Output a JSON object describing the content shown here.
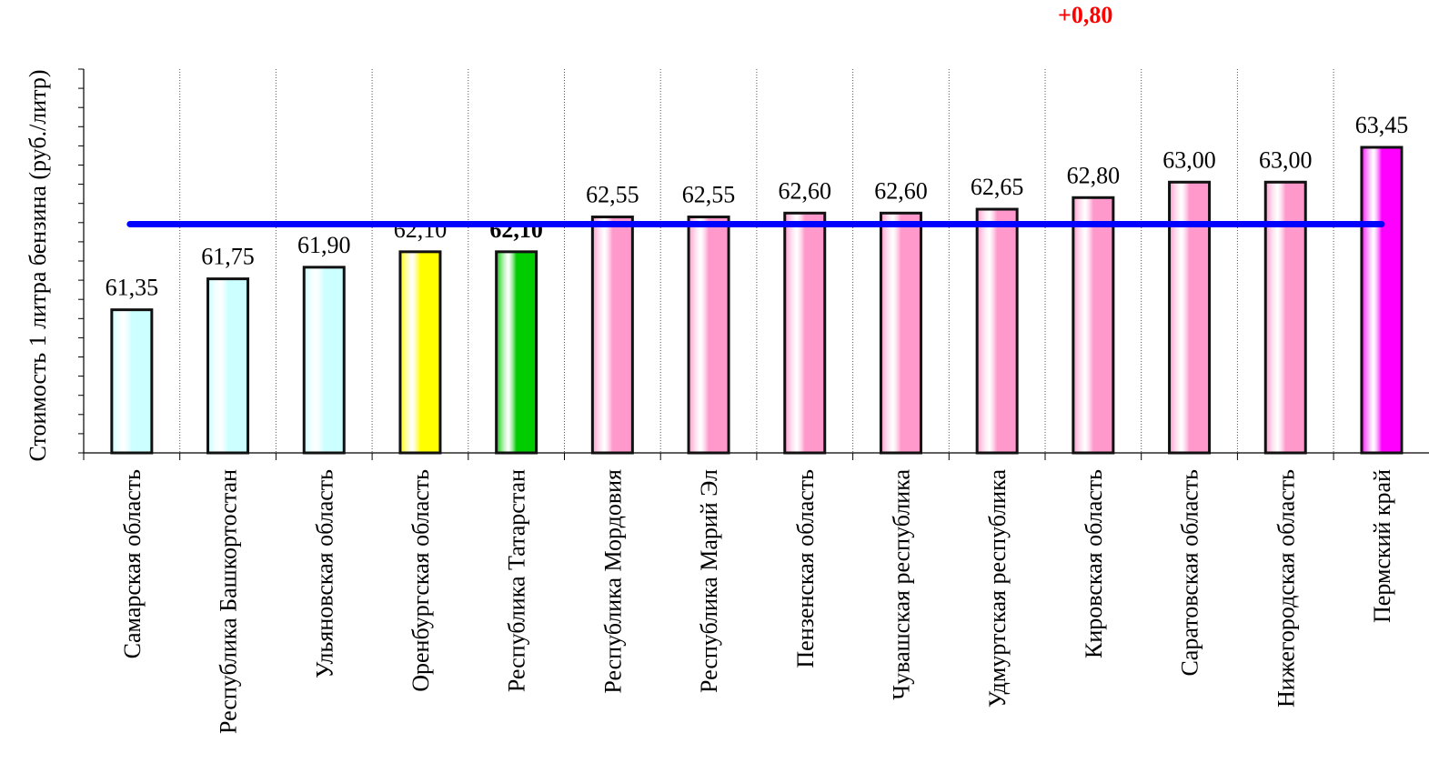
{
  "chart_data": {
    "type": "bar",
    "ylabel": "Стоимость 1 литра бензина  (руб./литр)",
    "annotation": "+0,80",
    "categories": [
      "Самарская область",
      "Республика Башкортостан",
      "Ульяновская область",
      "Оренбургская область",
      "Республика Татарстан",
      "Республика Мордовия",
      "Республика Марий Эл",
      "Пензенская область",
      "Чувашская республика",
      "Удмуртская республика",
      "Кировская область",
      "Саратовская область",
      "Нижегородская область",
      "Пермский край"
    ],
    "values": [
      61.35,
      61.75,
      61.9,
      62.1,
      62.1,
      62.55,
      62.55,
      62.6,
      62.6,
      62.65,
      62.8,
      63.0,
      63.0,
      63.45
    ],
    "value_labels": [
      "61,35",
      "61,75",
      "61,90",
      "62,10",
      "62,10",
      "62,55",
      "62,55",
      "62,60",
      "62,60",
      "62,65",
      "62,80",
      "63,00",
      "63,00",
      "63,45"
    ],
    "bold_label_index": 4,
    "bar_colors": [
      "#ccffff",
      "#ccffff",
      "#ccffff",
      "#ffff00",
      "#00cc00",
      "#ff99cc",
      "#ff99cc",
      "#ff99cc",
      "#ff99cc",
      "#ff99cc",
      "#ff99cc",
      "#ff99cc",
      "#ff99cc",
      "#ff00ff"
    ],
    "average_line_color": "#0000ff",
    "grid": "vertical-dotted"
  }
}
